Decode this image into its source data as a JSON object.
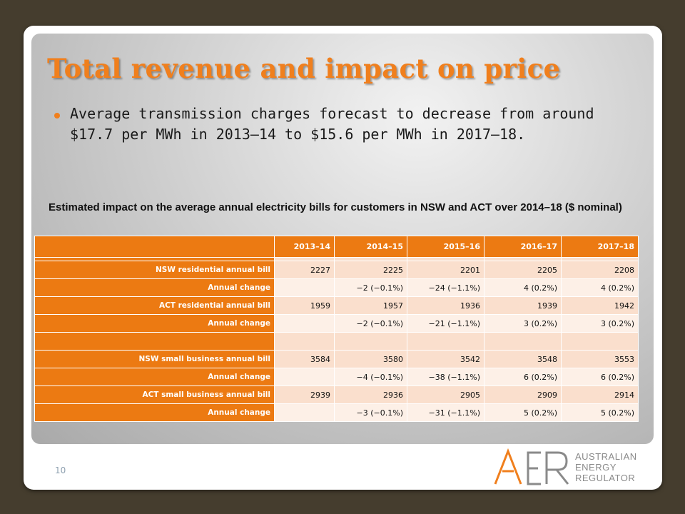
{
  "title": "Total revenue and impact on price",
  "bullet": "Average transmission charges forecast to decrease from around $17.7 per MWh in 2013–14 to $15.6 per MWh in 2017–18.",
  "caption": "Estimated impact on the average annual electricity bills for customers in NSW and ACT over 2014–18 ($ nominal)",
  "table": {
    "columns": [
      "2013–14",
      "2014–15",
      "2015–16",
      "2016–17",
      "2017–18"
    ],
    "rows": [
      {
        "label": "NSW residential annual bill",
        "values": [
          "2227",
          "2225",
          "2201",
          "2205",
          "2208"
        ]
      },
      {
        "label": "Annual change",
        "values": [
          "",
          "−2 (−0.1%)",
          "−24 (−1.1%)",
          "4 (0.2%)",
          "4 (0.2%)"
        ]
      },
      {
        "label": "ACT residential annual bill",
        "values": [
          "1959",
          "1957",
          "1936",
          "1939",
          "1942"
        ]
      },
      {
        "label": "Annual change",
        "values": [
          "",
          "−2 (−0.1%)",
          "−21 (−1.1%)",
          "3 (0.2%)",
          "3 (0.2%)"
        ]
      },
      {
        "label": "",
        "values": [
          "",
          "",
          "",
          "",
          ""
        ]
      },
      {
        "label": "NSW small business annual bill",
        "values": [
          "3584",
          "3580",
          "3542",
          "3548",
          "3553"
        ]
      },
      {
        "label": "Annual change",
        "values": [
          "",
          "−4 (−0.1%)",
          "−38 (−1.1%)",
          "6 (0.2%)",
          "6 (0.2%)"
        ]
      },
      {
        "label": "ACT small business annual bill",
        "values": [
          "2939",
          "2936",
          "2905",
          "2909",
          "2914"
        ]
      },
      {
        "label": "Annual change",
        "values": [
          "",
          "−3 (−0.1%)",
          "−31 (−1.1%)",
          "5 (0.2%)",
          "5 (0.2%)"
        ]
      }
    ]
  },
  "page_number": "10",
  "logo": {
    "mark": "AER",
    "lines": [
      "AUSTRALIAN",
      "ENERGY",
      "REGULATOR"
    ]
  },
  "colors": {
    "accent": "#f07f1d",
    "table_header": "#ec7a12",
    "table_cell": "#fadfcd",
    "table_cell_alt": "#fdf0e7",
    "frame": "#453d2e"
  }
}
